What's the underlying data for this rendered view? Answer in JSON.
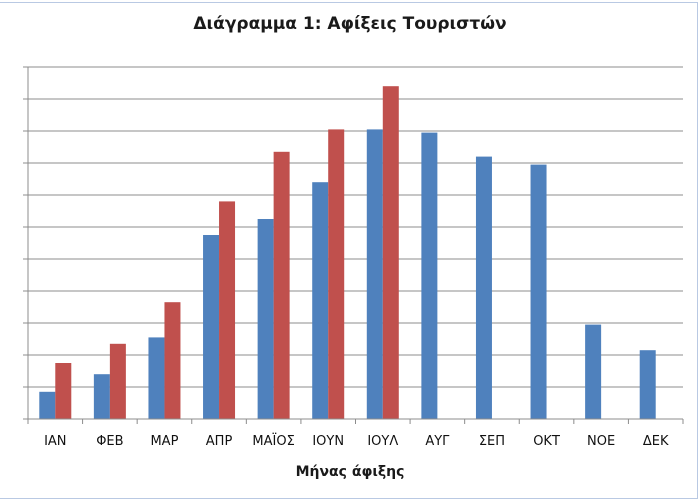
{
  "chart_data": {
    "type": "bar",
    "title": "Διάγραμμα 1: Αφίξεις Τουριστών",
    "xlabel": "Μήνας άφιξης",
    "ylabel": "",
    "categories": [
      "ΙΑΝ",
      "ΦΕΒ",
      "ΜΑΡ",
      "ΑΠΡ",
      "ΜΑΪΟΣ",
      "ΙΟΥΝ",
      "ΙΟΥΛ",
      "ΑΥΓ",
      "ΣΕΠ",
      "ΟΚΤ",
      "ΝΟΕ",
      "ΔΕΚ"
    ],
    "ylim": [
      0,
      1100
    ],
    "ytick_step": 100,
    "grid": true,
    "series": [
      {
        "color": "#4f81bd",
        "values": [
          85,
          140,
          255,
          575,
          625,
          740,
          905,
          895,
          820,
          795,
          295,
          215
        ]
      },
      {
        "color": "#c0504d",
        "values": [
          175,
          235,
          365,
          680,
          835,
          905,
          1040,
          null,
          null,
          null,
          null,
          null
        ]
      }
    ]
  }
}
